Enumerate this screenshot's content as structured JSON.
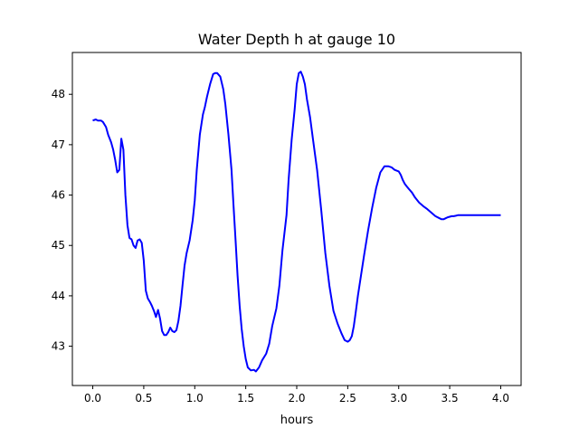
{
  "chart_data": {
    "type": "line",
    "title": "Water Depth h at gauge 10",
    "xlabel": "hours",
    "ylabel": "",
    "xlim": [
      -0.2,
      4.2
    ],
    "ylim": [
      42.22,
      48.83
    ],
    "xticks": [
      0.0,
      0.5,
      1.0,
      1.5,
      2.0,
      2.5,
      3.0,
      3.5,
      4.0
    ],
    "xtick_labels": [
      "0.0",
      "0.5",
      "1.0",
      "1.5",
      "2.0",
      "2.5",
      "3.0",
      "3.5",
      "4.0"
    ],
    "yticks": [
      43,
      44,
      45,
      46,
      47,
      48
    ],
    "ytick_labels": [
      "43",
      "44",
      "45",
      "46",
      "47",
      "48"
    ],
    "grid": false,
    "legend": "none",
    "colors": {
      "line": "#0000ff",
      "axes": "#000000",
      "background": "#ffffff"
    },
    "series": [
      {
        "x": [
          0.0,
          0.03,
          0.05,
          0.08,
          0.1,
          0.13,
          0.15,
          0.18,
          0.2,
          0.22,
          0.24,
          0.26,
          0.28,
          0.3,
          0.32,
          0.34,
          0.36,
          0.38,
          0.4,
          0.42,
          0.44,
          0.46,
          0.48,
          0.5,
          0.52,
          0.54,
          0.56,
          0.58,
          0.6,
          0.62,
          0.64,
          0.66,
          0.68,
          0.7,
          0.72,
          0.74,
          0.76,
          0.78,
          0.8,
          0.82,
          0.84,
          0.86,
          0.88,
          0.9,
          0.92,
          0.95,
          0.98,
          1.0,
          1.02,
          1.05,
          1.08,
          1.1,
          1.12,
          1.15,
          1.18,
          1.2,
          1.22,
          1.25,
          1.28,
          1.3,
          1.33,
          1.36,
          1.38,
          1.4,
          1.42,
          1.44,
          1.46,
          1.48,
          1.5,
          1.52,
          1.55,
          1.58,
          1.6,
          1.63,
          1.66,
          1.7,
          1.73,
          1.76,
          1.8,
          1.83,
          1.86,
          1.9,
          1.92,
          1.95,
          1.98,
          2.0,
          2.02,
          2.04,
          2.06,
          2.08,
          2.1,
          2.13,
          2.16,
          2.2,
          2.24,
          2.28,
          2.32,
          2.36,
          2.4,
          2.44,
          2.47,
          2.5,
          2.52,
          2.54,
          2.56,
          2.58,
          2.6,
          2.63,
          2.66,
          2.7,
          2.74,
          2.78,
          2.82,
          2.86,
          2.9,
          2.93,
          2.96,
          3.0,
          3.02,
          3.04,
          3.06,
          3.08,
          3.1,
          3.13,
          3.16,
          3.2,
          3.24,
          3.28,
          3.32,
          3.36,
          3.4,
          3.42,
          3.44,
          3.46,
          3.48,
          3.5,
          3.52,
          3.54,
          3.56,
          3.58,
          3.6,
          3.62,
          3.64,
          3.66,
          3.68,
          3.7,
          3.72,
          3.74,
          3.76,
          3.78,
          3.8,
          3.82,
          3.84,
          3.86,
          3.88,
          3.9,
          3.92,
          3.95,
          3.98,
          4.0
        ],
        "y": [
          47.48,
          47.5,
          47.48,
          47.48,
          47.45,
          47.35,
          47.2,
          47.05,
          46.9,
          46.7,
          46.45,
          46.5,
          47.12,
          46.9,
          46.0,
          45.4,
          45.15,
          45.12,
          45.0,
          44.95,
          45.1,
          45.12,
          45.05,
          44.7,
          44.1,
          43.95,
          43.88,
          43.8,
          43.7,
          43.58,
          43.72,
          43.55,
          43.3,
          43.22,
          43.22,
          43.28,
          43.37,
          43.3,
          43.28,
          43.32,
          43.5,
          43.8,
          44.2,
          44.6,
          44.85,
          45.1,
          45.5,
          45.9,
          46.5,
          47.2,
          47.6,
          47.75,
          47.95,
          48.2,
          48.4,
          48.42,
          48.42,
          48.35,
          48.1,
          47.8,
          47.2,
          46.5,
          45.8,
          45.1,
          44.4,
          43.8,
          43.35,
          43.0,
          42.75,
          42.58,
          42.52,
          42.53,
          42.5,
          42.58,
          42.72,
          42.85,
          43.05,
          43.4,
          43.75,
          44.2,
          44.9,
          45.6,
          46.3,
          47.1,
          47.7,
          48.2,
          48.42,
          48.45,
          48.35,
          48.2,
          47.9,
          47.55,
          47.1,
          46.5,
          45.7,
          44.85,
          44.2,
          43.7,
          43.45,
          43.25,
          43.12,
          43.09,
          43.12,
          43.2,
          43.4,
          43.7,
          44.0,
          44.4,
          44.8,
          45.3,
          45.75,
          46.15,
          46.45,
          46.57,
          46.57,
          46.55,
          46.5,
          46.47,
          46.4,
          46.3,
          46.22,
          46.17,
          46.12,
          46.05,
          45.95,
          45.85,
          45.78,
          45.72,
          45.65,
          45.58,
          45.54,
          45.52,
          45.52,
          45.54,
          45.56,
          45.57,
          45.58,
          45.58,
          45.59,
          45.6,
          45.6,
          45.6,
          45.6,
          45.6,
          45.6,
          45.6,
          45.6,
          45.6,
          45.6,
          45.6,
          45.6,
          45.6,
          45.6,
          45.6,
          45.6,
          45.6,
          45.6,
          45.6,
          45.6,
          45.6
        ]
      }
    ]
  }
}
